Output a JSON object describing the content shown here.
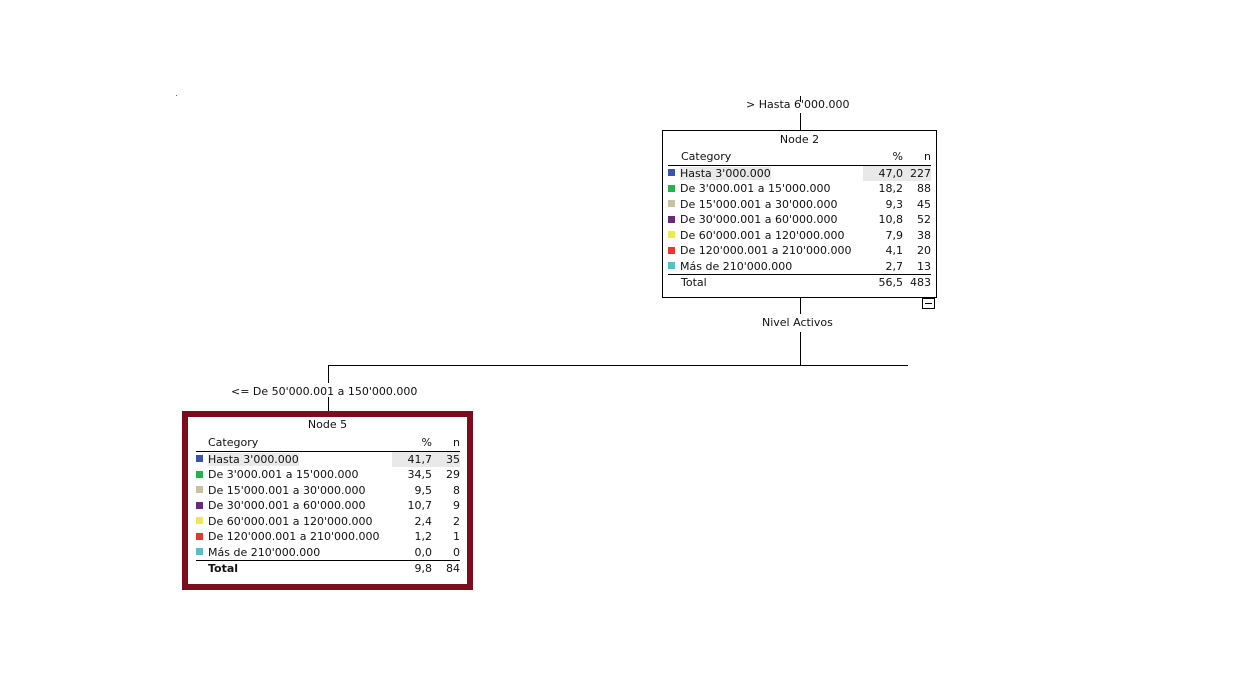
{
  "colors": {
    "selected_border": "#7d0c1e",
    "categories": [
      "#3a55a8",
      "#2fae4a",
      "#c8c2a0",
      "#6b2a7e",
      "#ece85a",
      "#e23a2e",
      "#4fc3c8"
    ]
  },
  "tree": {
    "node2": {
      "split_label": "> Hasta 6'000.000",
      "title": "Node 2",
      "header": {
        "category": "Category",
        "pct": "%",
        "n": "n"
      },
      "rows": [
        {
          "label": "Hasta 3'000.000",
          "pct": "47,0",
          "n": "227"
        },
        {
          "label": "De 3'000.001 a 15'000.000",
          "pct": "18,2",
          "n": "88"
        },
        {
          "label": "De 15'000.001 a 30'000.000",
          "pct": "9,3",
          "n": "45"
        },
        {
          "label": "De 30'000.001 a 60'000.000",
          "pct": "10,8",
          "n": "52"
        },
        {
          "label": "De 60'000.001 a 120'000.000",
          "pct": "7,9",
          "n": "38"
        },
        {
          "label": "De 120'000.001 a 210'000.000",
          "pct": "4,1",
          "n": "20"
        },
        {
          "label": "Más de 210'000.000",
          "pct": "2,7",
          "n": "13"
        }
      ],
      "total": {
        "label": "Total",
        "pct": "56,5",
        "n": "483"
      },
      "split_variable": "Nivel Activos"
    },
    "node5": {
      "split_label": "<= De 50'000.001 a 150'000.000",
      "title": "Node 5",
      "header": {
        "category": "Category",
        "pct": "%",
        "n": "n"
      },
      "rows": [
        {
          "label": "Hasta 3'000.000",
          "pct": "41,7",
          "n": "35"
        },
        {
          "label": "De 3'000.001 a 15'000.000",
          "pct": "34,5",
          "n": "29"
        },
        {
          "label": "De 15'000.001 a 30'000.000",
          "pct": "9,5",
          "n": "8"
        },
        {
          "label": "De 30'000.001 a 60'000.000",
          "pct": "10,7",
          "n": "9"
        },
        {
          "label": "De 60'000.001 a 120'000.000",
          "pct": "2,4",
          "n": "2"
        },
        {
          "label": "De 120'000.001 a 210'000.000",
          "pct": "1,2",
          "n": "1"
        },
        {
          "label": "Más de 210'000.000",
          "pct": "0,0",
          "n": "0"
        }
      ],
      "total": {
        "label": "Total",
        "pct": "9,8",
        "n": "84"
      }
    }
  }
}
